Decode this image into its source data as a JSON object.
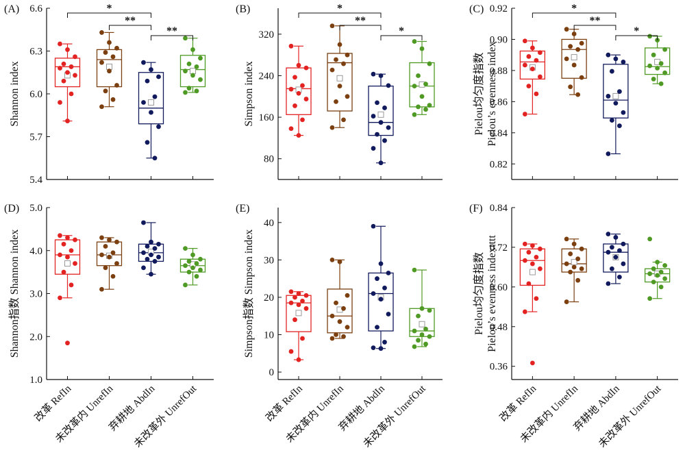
{
  "chart_data": [
    {
      "type": "box",
      "label": "(A)",
      "ylabel": [
        "Shannon index"
      ],
      "ylim": [
        5.4,
        6.6
      ],
      "yticks": [
        5.4,
        5.7,
        6.0,
        6.3,
        6.6
      ],
      "tick_decimals": 1,
      "categories": [
        "改革 RefIn",
        "未改革内 UnrefIn",
        "弃耕地 AbdIn",
        "未改革外 UnrefOut"
      ],
      "colors": [
        "#e32222",
        "#7b3f10",
        "#101a5c",
        "#4f9a24"
      ],
      "boxes": [
        {
          "q1": 6.05,
          "median": 6.19,
          "q3": 6.25,
          "min": 5.81,
          "max": 6.35,
          "mean": 6.13,
          "points": [
            6.35,
            6.31,
            6.26,
            6.21,
            6.19,
            6.18,
            6.15,
            6.13,
            6.09,
            6.0,
            5.94,
            5.81
          ]
        },
        {
          "q1": 6.05,
          "median": 6.24,
          "q3": 6.31,
          "min": 5.91,
          "max": 6.43,
          "mean": 6.19,
          "points": [
            6.43,
            6.36,
            6.32,
            6.29,
            6.26,
            6.22,
            6.16,
            6.06,
            6.02,
            5.96,
            5.91
          ]
        },
        {
          "q1": 5.79,
          "median": 5.9,
          "q3": 6.15,
          "min": 5.55,
          "max": 6.22,
          "mean": 5.94,
          "points": [
            6.22,
            6.17,
            6.12,
            6.09,
            5.98,
            5.94,
            5.87,
            5.77,
            5.66,
            5.55
          ]
        },
        {
          "q1": 6.05,
          "median": 6.17,
          "q3": 6.27,
          "min": 6.01,
          "max": 6.39,
          "mean": 6.16,
          "points": [
            6.39,
            6.31,
            6.25,
            6.21,
            6.19,
            6.16,
            6.13,
            6.1,
            6.04,
            6.02,
            6.01
          ]
        }
      ],
      "significance": [
        {
          "from": 0,
          "to": 2,
          "label": "*"
        },
        {
          "from": 1,
          "to": 2,
          "label": "**"
        },
        {
          "from": 2,
          "to": 3,
          "label": "**"
        }
      ]
    },
    {
      "type": "box",
      "label": "(B)",
      "ylabel": [
        "Simpson index"
      ],
      "ylim": [
        40,
        370
      ],
      "yticks": [
        80,
        160,
        240,
        320
      ],
      "tick_decimals": 0,
      "categories": [
        "改革 RefIn",
        "未改革内 UnrefIn",
        "弃耕地 AbdIn",
        "未改革外 UnrefOut"
      ],
      "colors": [
        "#e32222",
        "#7b3f10",
        "#101a5c",
        "#4f9a24"
      ],
      "boxes": [
        {
          "q1": 165,
          "median": 215,
          "q3": 255,
          "min": 125,
          "max": 297,
          "mean": 213,
          "points": [
            297,
            260,
            255,
            237,
            221,
            214,
            206,
            195,
            182,
            155,
            138,
            125
          ]
        },
        {
          "q1": 172,
          "median": 265,
          "q3": 283,
          "min": 140,
          "max": 336,
          "mean": 235,
          "points": [
            336,
            300,
            280,
            271,
            263,
            251,
            220,
            200,
            190,
            155,
            140
          ]
        },
        {
          "q1": 125,
          "median": 150,
          "q3": 220,
          "min": 72,
          "max": 243,
          "mean": 165,
          "points": [
            243,
            240,
            221,
            188,
            178,
            162,
            150,
            140,
            127,
            115,
            100,
            72
          ]
        },
        {
          "q1": 180,
          "median": 220,
          "q3": 265,
          "min": 165,
          "max": 306,
          "mean": 223,
          "points": [
            306,
            292,
            263,
            240,
            224,
            220,
            200,
            183,
            180,
            175,
            165
          ]
        }
      ],
      "significance": [
        {
          "from": 0,
          "to": 2,
          "label": "*"
        },
        {
          "from": 1,
          "to": 2,
          "label": "**"
        },
        {
          "from": 2,
          "to": 3,
          "label": "*"
        }
      ]
    },
    {
      "type": "box",
      "label": "(C)",
      "ylabel": [
        "Pielou均匀度指数",
        "Pielou’s evenness index"
      ],
      "ylim": [
        0.81,
        0.92
      ],
      "yticks": [
        0.82,
        0.84,
        0.86,
        0.88,
        0.9,
        0.92
      ],
      "tick_decimals": 2,
      "categories": [
        "改革 RefIn",
        "未改革内 UnrefIn",
        "弃耕地 AbdIn",
        "未改革外 UnrefOut"
      ],
      "colors": [
        "#e32222",
        "#7b3f10",
        "#101a5c",
        "#4f9a24"
      ],
      "boxes": [
        {
          "q1": 0.8745,
          "median": 0.8855,
          "q3": 0.8925,
          "min": 0.852,
          "max": 0.899,
          "mean": 0.882,
          "points": [
            0.899,
            0.8945,
            0.8915,
            0.889,
            0.8865,
            0.8835,
            0.881,
            0.876,
            0.87,
            0.865,
            0.852
          ]
        },
        {
          "q1": 0.875,
          "median": 0.8935,
          "q3": 0.9,
          "min": 0.8645,
          "max": 0.9065,
          "mean": 0.8885,
          "points": [
            0.9065,
            0.9035,
            0.8975,
            0.8955,
            0.8935,
            0.8875,
            0.8835,
            0.8755,
            0.8695,
            0.8645
          ]
        },
        {
          "q1": 0.8495,
          "median": 0.861,
          "q3": 0.884,
          "min": 0.8265,
          "max": 0.89,
          "mean": 0.8635,
          "points": [
            0.89,
            0.8875,
            0.8855,
            0.8795,
            0.8665,
            0.8635,
            0.859,
            0.853,
            0.848,
            0.8445,
            0.8265
          ]
        },
        {
          "q1": 0.8775,
          "median": 0.8825,
          "q3": 0.8945,
          "min": 0.8715,
          "max": 0.902,
          "mean": 0.8855,
          "points": [
            0.902,
            0.8995,
            0.8935,
            0.89,
            0.8845,
            0.883,
            0.8815,
            0.8785,
            0.8745,
            0.8715
          ]
        }
      ],
      "significance": [
        {
          "from": 0,
          "to": 2,
          "label": "*"
        },
        {
          "from": 1,
          "to": 2,
          "label": "**"
        },
        {
          "from": 2,
          "to": 3,
          "label": "*"
        }
      ]
    },
    {
      "type": "box",
      "label": "(D)",
      "ylabel": [
        "Shannon指数 Shannon index"
      ],
      "ylim": [
        1.0,
        5.0
      ],
      "yticks": [
        1.0,
        2.0,
        3.0,
        4.0,
        5.0
      ],
      "tick_decimals": 1,
      "categories": [
        "改革 RefIn",
        "未改革内 UnrefIn",
        "弃耕地 AbdIn",
        "未改革外 UnrefOut"
      ],
      "colors": [
        "#e32222",
        "#7b3f10",
        "#101a5c",
        "#4f9a24"
      ],
      "boxes": [
        {
          "q1": 3.45,
          "median": 3.9,
          "q3": 4.25,
          "min": 2.9,
          "max": 4.35,
          "mean": 3.7,
          "points": [
            4.35,
            4.3,
            4.25,
            4.15,
            4.0,
            3.9,
            3.85,
            3.7,
            3.5,
            3.2,
            2.9,
            1.85
          ]
        },
        {
          "q1": 3.65,
          "median": 3.9,
          "q3": 4.2,
          "min": 3.1,
          "max": 4.3,
          "mean": 3.88,
          "points": [
            4.3,
            4.25,
            4.2,
            4.1,
            3.95,
            3.9,
            3.85,
            3.7,
            3.6,
            3.4,
            3.1
          ]
        },
        {
          "q1": 3.75,
          "median": 3.95,
          "q3": 4.15,
          "min": 3.45,
          "max": 4.65,
          "mean": 3.97,
          "points": [
            4.65,
            4.2,
            4.15,
            4.1,
            4.05,
            3.95,
            3.9,
            3.85,
            3.8,
            3.75,
            3.6,
            3.45
          ]
        },
        {
          "q1": 3.5,
          "median": 3.65,
          "q3": 3.8,
          "min": 3.2,
          "max": 4.05,
          "mean": 3.68,
          "points": [
            4.05,
            3.9,
            3.8,
            3.75,
            3.7,
            3.65,
            3.6,
            3.55,
            3.5,
            3.4,
            3.2
          ]
        }
      ],
      "significance": []
    },
    {
      "type": "box",
      "label": "(E)",
      "ylabel": [
        "Simpson指数 Simpson index"
      ],
      "ylim": [
        -2,
        44
      ],
      "yticks": [
        0,
        10,
        20,
        30,
        40
      ],
      "tick_decimals": 0,
      "categories": [
        "改革 RefIn",
        "未改革内 UnrefIn",
        "弃耕地 AbdIn",
        "未改革外 UnrefOut"
      ],
      "colors": [
        "#e32222",
        "#7b3f10",
        "#101a5c",
        "#4f9a24"
      ],
      "boxes": [
        {
          "q1": 10.8,
          "median": 18.5,
          "q3": 20.5,
          "min": 3.3,
          "max": 21.5,
          "mean": 15.8,
          "points": [
            21.5,
            21.0,
            20.5,
            20.0,
            19.0,
            18.5,
            18.0,
            17.0,
            14.0,
            9.0,
            5.5,
            3.3
          ]
        },
        {
          "q1": 10.5,
          "median": 15.0,
          "q3": 22.2,
          "min": 9.0,
          "max": 30.0,
          "mean": 16.7,
          "points": [
            30.0,
            29.5,
            20.5,
            18.5,
            17.0,
            15.0,
            13.5,
            12.0,
            10.0,
            9.5,
            9.0
          ]
        },
        {
          "q1": 11.0,
          "median": 21.0,
          "q3": 26.5,
          "min": 6.3,
          "max": 39.0,
          "mean": 20.0,
          "points": [
            39.0,
            29.0,
            26.5,
            25.0,
            22.5,
            21.0,
            19.5,
            15.5,
            12.0,
            8.0,
            6.5,
            6.3
          ]
        },
        {
          "q1": 9.5,
          "median": 11.0,
          "q3": 17.0,
          "min": 6.8,
          "max": 27.3,
          "mean": 12.8,
          "points": [
            27.3,
            17.0,
            16.5,
            15.0,
            11.5,
            11.0,
            10.0,
            9.5,
            8.5,
            7.5,
            6.8
          ]
        }
      ],
      "significance": []
    },
    {
      "type": "box",
      "label": "(F)",
      "ylabel": [
        "Pielou均匀度指数",
        "Pielou’s evenness indextttt"
      ],
      "ylim": [
        0.32,
        0.84
      ],
      "yticks": [
        0.36,
        0.48,
        0.6,
        0.72,
        0.84
      ],
      "tick_decimals": 2,
      "categories": [
        "改革 RefIn",
        "未改革内 UnrefIn",
        "弃耕地 AbdIn",
        "未改革外 UnrefOut"
      ],
      "colors": [
        "#e32222",
        "#7b3f10",
        "#101a5c",
        "#4f9a24"
      ],
      "boxes": [
        {
          "q1": 0.605,
          "median": 0.68,
          "q3": 0.715,
          "min": 0.525,
          "max": 0.73,
          "mean": 0.645,
          "points": [
            0.73,
            0.725,
            0.715,
            0.705,
            0.69,
            0.68,
            0.67,
            0.655,
            0.61,
            0.565,
            0.525,
            0.37
          ]
        },
        {
          "q1": 0.645,
          "median": 0.67,
          "q3": 0.715,
          "min": 0.555,
          "max": 0.745,
          "mean": 0.675,
          "points": [
            0.745,
            0.73,
            0.715,
            0.7,
            0.685,
            0.67,
            0.66,
            0.655,
            0.645,
            0.62,
            0.555
          ]
        },
        {
          "q1": 0.645,
          "median": 0.705,
          "q3": 0.73,
          "min": 0.61,
          "max": 0.76,
          "mean": 0.69,
          "points": [
            0.76,
            0.75,
            0.73,
            0.72,
            0.71,
            0.705,
            0.69,
            0.67,
            0.655,
            0.63,
            0.61
          ]
        },
        {
          "q1": 0.615,
          "median": 0.64,
          "q3": 0.655,
          "min": 0.565,
          "max": 0.675,
          "mean": 0.64,
          "points": [
            0.745,
            0.675,
            0.665,
            0.655,
            0.645,
            0.64,
            0.635,
            0.625,
            0.615,
            0.6,
            0.565
          ]
        }
      ],
      "significance": []
    }
  ]
}
